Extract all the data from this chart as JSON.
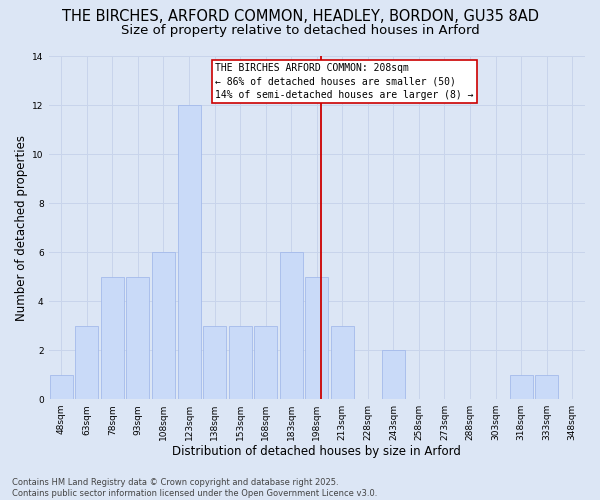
{
  "title1": "THE BIRCHES, ARFORD COMMON, HEADLEY, BORDON, GU35 8AD",
  "title2": "Size of property relative to detached houses in Arford",
  "xlabel": "Distribution of detached houses by size in Arford",
  "ylabel": "Number of detached properties",
  "bins": [
    48,
    63,
    78,
    93,
    108,
    123,
    138,
    153,
    168,
    183,
    198,
    213,
    228,
    243,
    258,
    273,
    288,
    303,
    318,
    333,
    348
  ],
  "counts": [
    1,
    3,
    5,
    5,
    6,
    12,
    3,
    3,
    3,
    6,
    5,
    3,
    0,
    2,
    0,
    0,
    0,
    0,
    1,
    1,
    0
  ],
  "bar_color": "#c9daf8",
  "bar_edge_color": "#a4baeb",
  "grid_color": "#c8d4eb",
  "bg_color": "#dce6f5",
  "red_line_x": 208,
  "annotation_text": "THE BIRCHES ARFORD COMMON: 208sqm\n← 86% of detached houses are smaller (50)\n14% of semi-detached houses are larger (8) →",
  "annotation_box_color": "#ffffff",
  "annotation_text_color": "#000000",
  "red_color": "#cc0000",
  "ylim": [
    0,
    14
  ],
  "yticks": [
    0,
    2,
    4,
    6,
    8,
    10,
    12,
    14
  ],
  "footer": "Contains HM Land Registry data © Crown copyright and database right 2025.\nContains public sector information licensed under the Open Government Licence v3.0.",
  "title1_fontsize": 10.5,
  "title2_fontsize": 9.5,
  "xlabel_fontsize": 8.5,
  "ylabel_fontsize": 8.5,
  "tick_fontsize": 6.5,
  "annot_fontsize": 7.0,
  "footer_fontsize": 6.0,
  "bin_width": 15
}
